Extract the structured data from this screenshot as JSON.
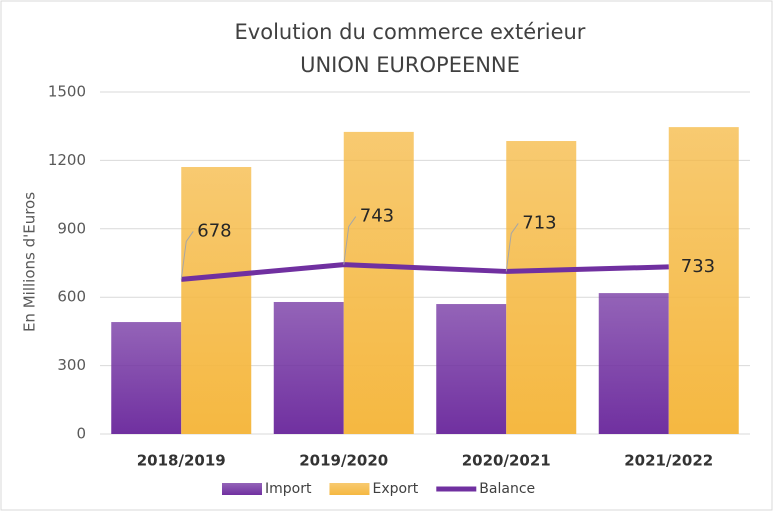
{
  "chart_data": {
    "type": "bar",
    "title": [
      "Evolution du commerce extérieur",
      "UNION EUROPEENNE"
    ],
    "y_label": "En Millions d'Euros",
    "categories": [
      "2018/2019",
      "2019/2020",
      "2020/2021",
      "2021/2022"
    ],
    "series": [
      {
        "name": "Import",
        "type": "bar",
        "color": "#7030a0",
        "values": [
          491,
          579,
          570,
          618
        ]
      },
      {
        "name": "Export",
        "type": "bar",
        "color": "#f5b841",
        "values": [
          1171,
          1325,
          1285,
          1346
        ]
      },
      {
        "name": "Balance",
        "type": "line",
        "color": "#7030a0",
        "values": [
          678,
          743,
          713,
          733
        ],
        "value_labels": [
          "678",
          "743",
          "713",
          "733"
        ]
      }
    ],
    "ylim": [
      0,
      1500
    ],
    "yticks": [
      0,
      300,
      600,
      900,
      1200,
      1500
    ],
    "grid": true,
    "legend": "bottom"
  }
}
